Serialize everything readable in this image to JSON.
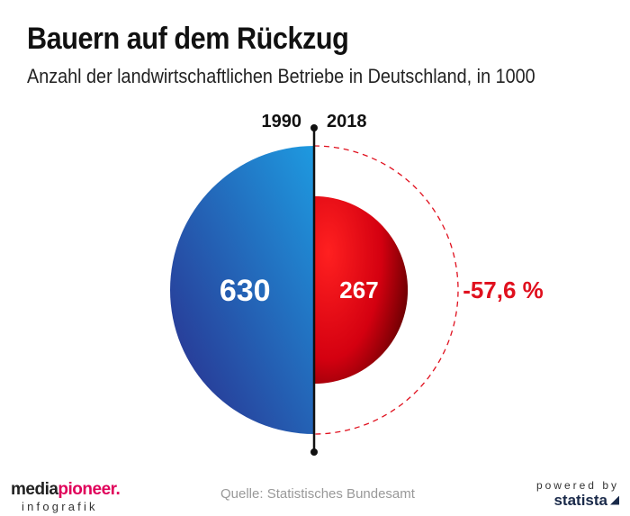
{
  "chart_data": {
    "type": "half-circle-comparison",
    "title": "Bauern auf dem Rückzug",
    "subtitle": "Anzahl der landwirtschaftlichen Betriebe in Deutschland, in 1000",
    "categories": [
      "1990",
      "2018"
    ],
    "values": [
      630,
      267
    ],
    "value_labels": [
      "630",
      "267"
    ],
    "change_label": "-57,6 %",
    "colors": {
      "left": "#2040a8",
      "left_light": "#1e9ae0",
      "right": "#e8001a",
      "right_light": "#ff2b2b",
      "right_dark": "#4a0000",
      "dashed": "#e0101e",
      "axis": "#111111"
    }
  },
  "footer": {
    "logo_part1": "media",
    "logo_part2": "pioneer.",
    "logo_sub": "infografik",
    "source": "Quelle: Statistisches Bundesamt",
    "powered_label": "powered by",
    "powered_brand": "statista"
  }
}
